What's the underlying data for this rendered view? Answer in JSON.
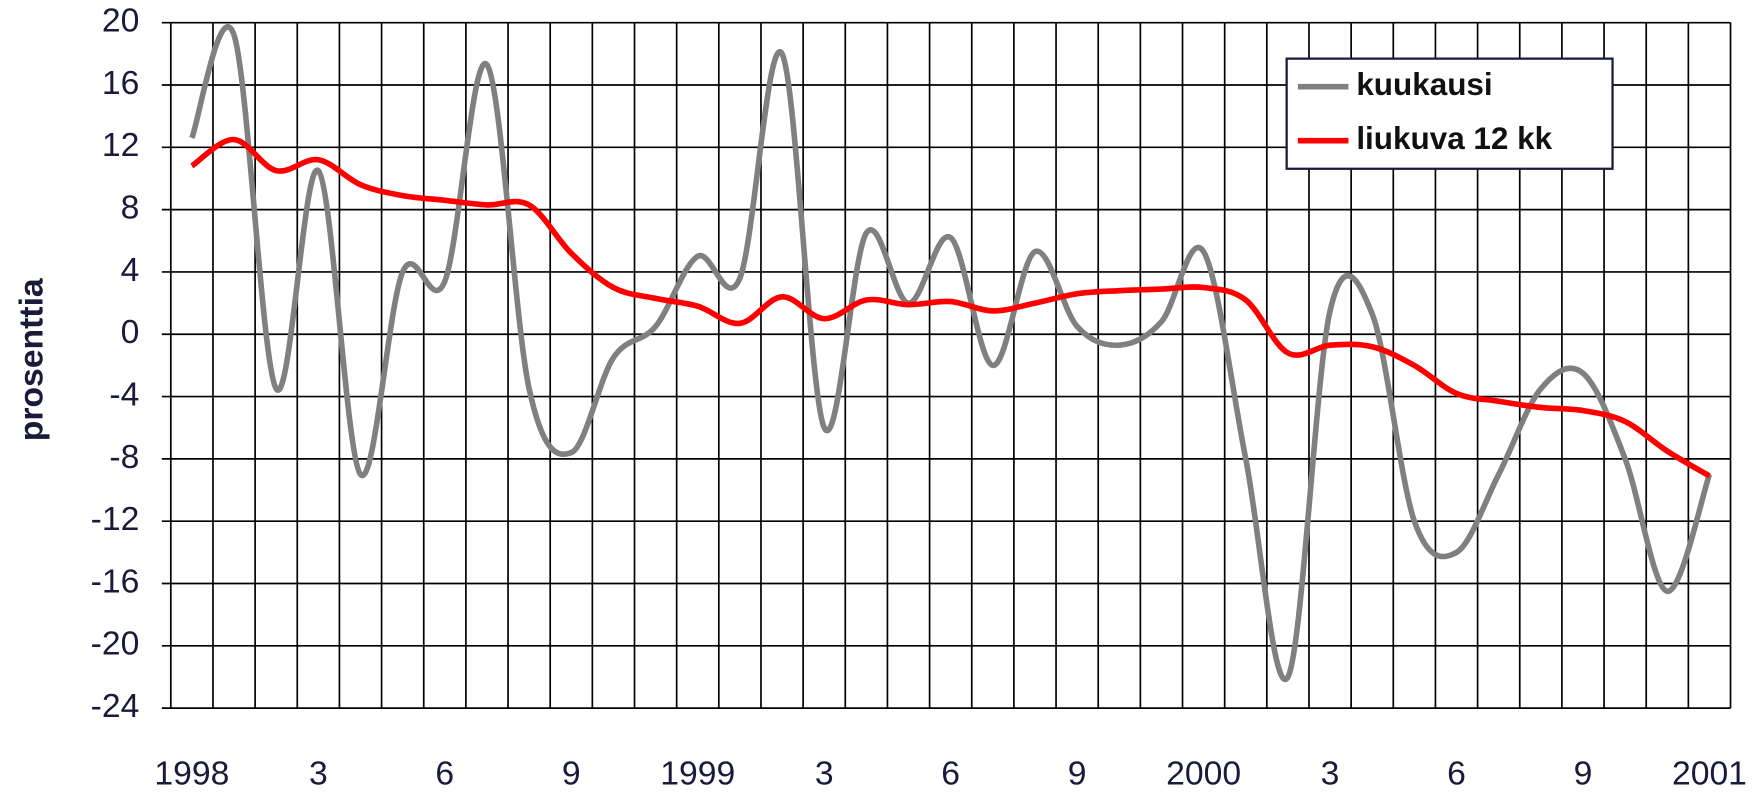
{
  "chart_data": {
    "type": "line",
    "y_label": "prosenttia",
    "categories": [
      "1998",
      null,
      null,
      "3",
      null,
      null,
      "6",
      null,
      null,
      "9",
      null,
      null,
      "1999",
      null,
      null,
      "3",
      null,
      null,
      "6",
      null,
      null,
      "9",
      null,
      null,
      "2000",
      null,
      null,
      "3",
      null,
      null,
      "6",
      null,
      null,
      "9",
      null,
      null,
      "2001"
    ],
    "series": [
      {
        "name": "kuukausi",
        "color": "#808080",
        "values": [
          12.6,
          19.2,
          -3.5,
          10.5,
          -9,
          4,
          3.4,
          17.3,
          -3.5,
          -7.6,
          -1.5,
          0.5,
          5,
          3.6,
          18,
          -6,
          6.5,
          2,
          6.2,
          -2,
          5.3,
          0.5,
          -0.7,
          0.8,
          5.3,
          -8,
          -22,
          1.5,
          1.3,
          -12,
          -14,
          -9,
          -3.5,
          -2.5,
          -8,
          -16.5,
          -9
        ]
      },
      {
        "name": "liukuva 12 kk",
        "color": "#ff0000",
        "values": [
          10.8,
          12.5,
          10.5,
          11.2,
          9.6,
          8.9,
          8.6,
          8.3,
          8.3,
          5.2,
          3.0,
          2.3,
          1.8,
          0.7,
          2.4,
          1.0,
          2.2,
          1.9,
          2.1,
          1.5,
          2.0,
          2.6,
          2.8,
          2.9,
          3.0,
          2.2,
          -1.2,
          -0.7,
          -0.8,
          -2.0,
          -3.8,
          -4.3,
          -4.7,
          -4.9,
          -5.6,
          -7.5,
          -9.1
        ]
      }
    ],
    "ylim": [
      -24,
      20
    ],
    "yticks": [
      20,
      16,
      12,
      8,
      4,
      0,
      -4,
      -8,
      -12,
      -16,
      -20,
      -24
    ],
    "grid": true,
    "legend": "upper right"
  }
}
